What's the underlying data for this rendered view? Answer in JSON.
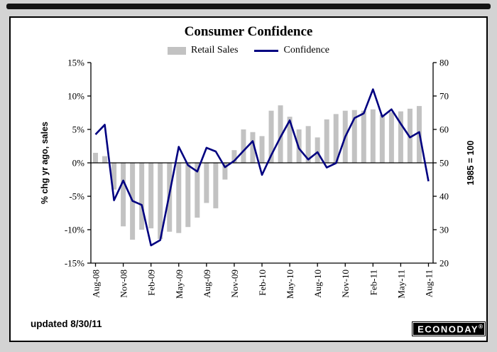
{
  "page": {
    "updated_text": "updated 8/30/11",
    "logo_text": "ECONODAY",
    "logo_reg": "®"
  },
  "chart_data": {
    "type": "bar+line",
    "title": "Consumer Confidence",
    "legend": [
      {
        "label": "Retail Sales",
        "marker": "bar",
        "color": "#c2c2c2"
      },
      {
        "label": "Confidence",
        "marker": "line",
        "color": "#000080"
      }
    ],
    "left_axis": {
      "label": "% chg yr ago, sales",
      "ticks": [
        "15%",
        "10%",
        "5%",
        "0%",
        "-5%",
        "-10%",
        "-15%"
      ],
      "tick_values": [
        15,
        10,
        5,
        0,
        -5,
        -10,
        -15
      ],
      "min": -15,
      "max": 15
    },
    "right_axis": {
      "label": "1985 = 100",
      "ticks": [
        "80",
        "70",
        "60",
        "50",
        "40",
        "30",
        "20"
      ],
      "tick_values": [
        80,
        70,
        60,
        50,
        40,
        30,
        20
      ],
      "min": 20,
      "max": 80
    },
    "x_tick_labels": [
      "Aug-08",
      "Nov-08",
      "Feb-09",
      "May-09",
      "Aug-09",
      "Nov-09",
      "Feb-10",
      "May-10",
      "Aug-10",
      "Nov-10",
      "Feb-11",
      "May-11",
      "Aug-11"
    ],
    "months": [
      "Aug-08",
      "Sep-08",
      "Oct-08",
      "Nov-08",
      "Dec-08",
      "Jan-09",
      "Feb-09",
      "Mar-09",
      "Apr-09",
      "May-09",
      "Jun-09",
      "Jul-09",
      "Aug-09",
      "Sep-09",
      "Oct-09",
      "Nov-09",
      "Dec-09",
      "Jan-10",
      "Feb-10",
      "Mar-10",
      "Apr-10",
      "May-10",
      "Jun-10",
      "Jul-10",
      "Aug-10",
      "Sep-10",
      "Oct-10",
      "Nov-10",
      "Dec-10",
      "Jan-11",
      "Feb-11",
      "Mar-11",
      "Apr-11",
      "May-11",
      "Jun-11",
      "Jul-11",
      "Aug-11"
    ],
    "series": [
      {
        "name": "Retail Sales",
        "type": "bar",
        "axis": "left",
        "color": "#c2c2c2",
        "values": [
          1.5,
          1.0,
          -4.0,
          -9.5,
          -11.5,
          -10.0,
          -9.8,
          -11.4,
          -10.3,
          -10.5,
          -9.6,
          -8.2,
          -6.0,
          -6.8,
          -2.5,
          1.9,
          5.0,
          4.6,
          4.0,
          7.8,
          8.6,
          6.9,
          5.0,
          5.5,
          3.8,
          6.5,
          7.3,
          7.8,
          7.9,
          7.8,
          8.0,
          7.2,
          7.6,
          7.7,
          8.1,
          8.5,
          null
        ]
      },
      {
        "name": "Confidence",
        "type": "line",
        "axis": "right",
        "color": "#000080",
        "values": [
          58.5,
          61.4,
          38.8,
          44.7,
          38.6,
          37.4,
          25.3,
          26.9,
          40.8,
          54.8,
          49.3,
          47.4,
          54.5,
          53.4,
          48.7,
          50.6,
          53.6,
          56.5,
          46.4,
          52.3,
          57.7,
          62.7,
          54.3,
          51.0,
          53.2,
          48.6,
          49.9,
          57.8,
          63.4,
          64.8,
          72.0,
          63.8,
          66.0,
          61.7,
          57.6,
          59.2,
          44.5
        ]
      }
    ]
  }
}
